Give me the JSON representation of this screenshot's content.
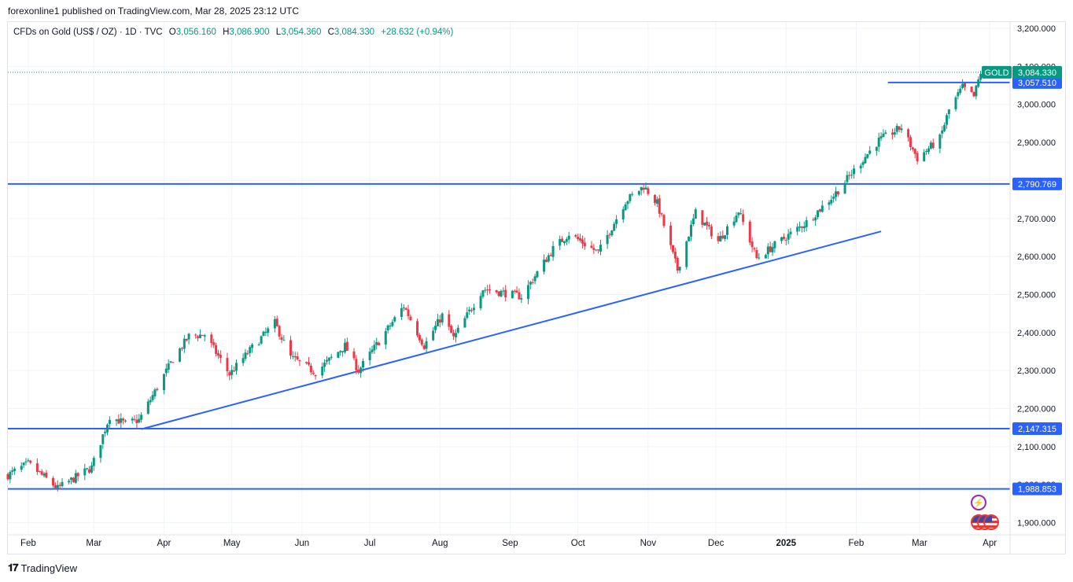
{
  "header": {
    "publisher_line": "forexonline1 published on TradingView.com, Mar 28, 2025 23:12 UTC"
  },
  "legend": {
    "symbol": "CFDs on Gold (US$ / OZ) · 1D · TVC",
    "o_label": "O",
    "o_value": "3,056.160",
    "h_label": "H",
    "h_value": "3,086.900",
    "l_label": "L",
    "l_value": "3,054.360",
    "c_label": "C",
    "c_value": "3,084.330",
    "change": "+28.632 (+0.94%)"
  },
  "colors": {
    "up": "#089981",
    "down": "#f23645",
    "level": "#2962ff",
    "grid": "#f0f3fa"
  },
  "footer": {
    "brand": "TradingView"
  },
  "chart_data": {
    "type": "candlestick",
    "symbol": "GOLD",
    "y_ticks": [
      "3,200.000",
      "3,100.000",
      "3,000.000",
      "2,900.000",
      "2,800.000",
      "2,700.000",
      "2,600.000",
      "2,500.000",
      "2,400.000",
      "2,300.000",
      "2,200.000",
      "2,100.000",
      "2,000.000",
      "1,900.000"
    ],
    "ylim": [
      1890,
      3205
    ],
    "x_ticks": [
      "Feb",
      "Mar",
      "Apr",
      "May",
      "Jun",
      "Jul",
      "Aug",
      "Sep",
      "Oct",
      "Nov",
      "Dec",
      "2025",
      "Feb",
      "Mar",
      "Apr"
    ],
    "x_tick_dates": [
      "2024-02-01",
      "2024-03-01",
      "2024-04-01",
      "2024-05-01",
      "2024-06-01",
      "2024-07-01",
      "2024-08-01",
      "2024-09-01",
      "2024-10-01",
      "2024-11-01",
      "2024-12-01",
      "2025-01-01",
      "2025-02-01",
      "2025-03-01",
      "2025-04-01"
    ],
    "x_range": [
      "2024-01-23",
      "2025-04-10"
    ],
    "last_price": {
      "label": "GOLD",
      "value": 3084.33,
      "text": "3,084.330"
    },
    "horizontal_levels": [
      {
        "value": 3057.51,
        "text": "3,057.510",
        "from": "2025-02-15",
        "to": "2025-04-10"
      },
      {
        "value": 2790.769,
        "text": "2,790.769",
        "from": "2024-01-23",
        "to": "2025-04-10"
      },
      {
        "value": 2147.315,
        "text": "2,147.315",
        "from": "2024-01-23",
        "to": "2025-04-10"
      },
      {
        "value": 1988.853,
        "text": "1,988.853",
        "from": "2024-01-23",
        "to": "2025-04-10"
      }
    ],
    "trend_line": {
      "start": [
        "2024-03-22",
        2146
      ],
      "end": [
        "2025-02-12",
        2666
      ]
    },
    "price_path": [
      [
        "2024-01-23",
        2025
      ],
      [
        "2024-02-01",
        2055
      ],
      [
        "2024-02-14",
        1990
      ],
      [
        "2024-02-29",
        2045
      ],
      [
        "2024-03-08",
        2180
      ],
      [
        "2024-03-15",
        2160
      ],
      [
        "2024-03-21",
        2170
      ],
      [
        "2024-04-05",
        2330
      ],
      [
        "2024-04-12",
        2390
      ],
      [
        "2024-04-19",
        2395
      ],
      [
        "2024-04-30",
        2290
      ],
      [
        "2024-05-10",
        2360
      ],
      [
        "2024-05-20",
        2425
      ],
      [
        "2024-05-27",
        2335
      ],
      [
        "2024-06-07",
        2295
      ],
      [
        "2024-06-20",
        2365
      ],
      [
        "2024-06-26",
        2300
      ],
      [
        "2024-07-16",
        2470
      ],
      [
        "2024-07-25",
        2365
      ],
      [
        "2024-08-02",
        2445
      ],
      [
        "2024-08-07",
        2385
      ],
      [
        "2024-08-20",
        2515
      ],
      [
        "2024-09-06",
        2495
      ],
      [
        "2024-09-20",
        2620
      ],
      [
        "2024-09-27",
        2660
      ],
      [
        "2024-10-10",
        2610
      ],
      [
        "2024-10-22",
        2745
      ],
      [
        "2024-10-30",
        2785
      ],
      [
        "2024-11-05",
        2740
      ],
      [
        "2024-11-14",
        2565
      ],
      [
        "2024-11-22",
        2715
      ],
      [
        "2024-12-02",
        2640
      ],
      [
        "2024-12-11",
        2720
      ],
      [
        "2024-12-19",
        2595
      ],
      [
        "2024-12-27",
        2630
      ],
      [
        "2025-01-10",
        2690
      ],
      [
        "2025-01-22",
        2760
      ],
      [
        "2025-02-06",
        2870
      ],
      [
        "2025-02-11",
        2905
      ],
      [
        "2025-02-21",
        2940
      ],
      [
        "2025-02-28",
        2858
      ],
      [
        "2025-03-10",
        2910
      ],
      [
        "2025-03-14",
        2985
      ],
      [
        "2025-03-20",
        3045
      ],
      [
        "2025-03-25",
        3020
      ],
      [
        "2025-03-28",
        3084
      ]
    ]
  }
}
